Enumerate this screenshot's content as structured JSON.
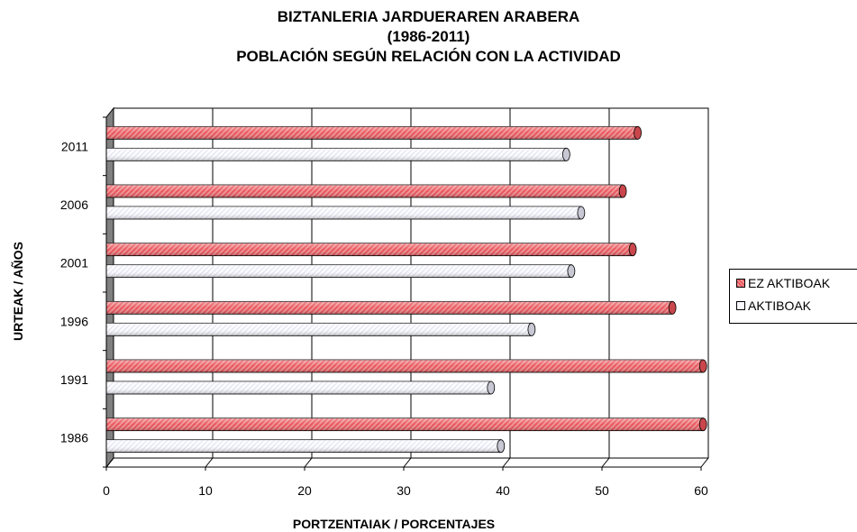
{
  "title_lines": [
    "BIZTANLERIA JARDUERAREN ARABERA",
    "(1986-2011)",
    "POBLACIÓN SEGÚN RELACIÓN CON LA ACTIVIDAD"
  ],
  "legend": {
    "ez": "EZ AKTIBOAK",
    "ak": "AKTIBOAK"
  },
  "colors": {
    "ez": "#e8575c",
    "ak": "#f4f4fb",
    "wall": "#808080"
  },
  "chart_data": {
    "type": "bar",
    "orientation": "horizontal",
    "title": "BIZTANLERIA JARDUERAREN ARABERA (1986-2011) POBLACIÓN SEGÚN RELACIÓN CON LA ACTIVIDAD",
    "xlabel": "PORTZENTAIAK / PORCENTAJES",
    "ylabel": "URTEAK / AÑOS",
    "categories": [
      "1986",
      "1991",
      "1996",
      "2001",
      "2006",
      "2011"
    ],
    "series": [
      {
        "name": "EZ AKTIBOAK",
        "values": [
          60.2,
          60.2,
          57.1,
          53.1,
          52.1,
          53.6
        ]
      },
      {
        "name": "AKTIBOAK",
        "values": [
          39.8,
          38.8,
          42.9,
          46.9,
          47.9,
          46.4
        ]
      }
    ],
    "xlim": [
      0,
      60
    ],
    "xticks": [
      0,
      10,
      20,
      30,
      40,
      50,
      60
    ],
    "grid": true,
    "legend_position": "right"
  }
}
